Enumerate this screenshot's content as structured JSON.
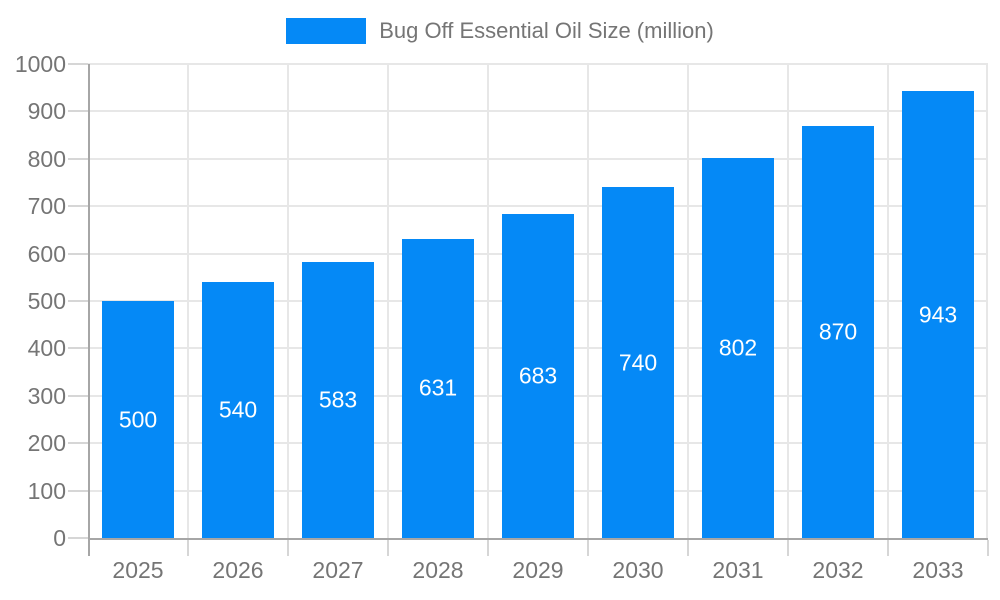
{
  "chart_data": {
    "type": "bar",
    "title": "Bug Off Essential Oil Size (million)",
    "legend_position": "top",
    "categories": [
      "2025",
      "2026",
      "2027",
      "2028",
      "2029",
      "2030",
      "2031",
      "2032",
      "2033"
    ],
    "series": [
      {
        "name": "Bug Off Essential Oil Size (million)",
        "values": [
          500,
          540,
          583,
          631,
          683,
          740,
          802,
          870,
          943
        ]
      }
    ],
    "yticks": [
      0,
      100,
      200,
      300,
      400,
      500,
      600,
      700,
      800,
      900,
      1000
    ],
    "ylim": [
      0,
      1000
    ],
    "xlabel": "",
    "ylabel": "",
    "grid": true,
    "value_labels_shown": true,
    "colors": {
      "bar": "#0589f6",
      "bar_label": "#ffffff",
      "axis_text": "#757575",
      "gridline": "#e7e7e7",
      "axis_line": "#a6a6a6",
      "tick": "#d6d6d6",
      "background": "#ffffff"
    }
  }
}
